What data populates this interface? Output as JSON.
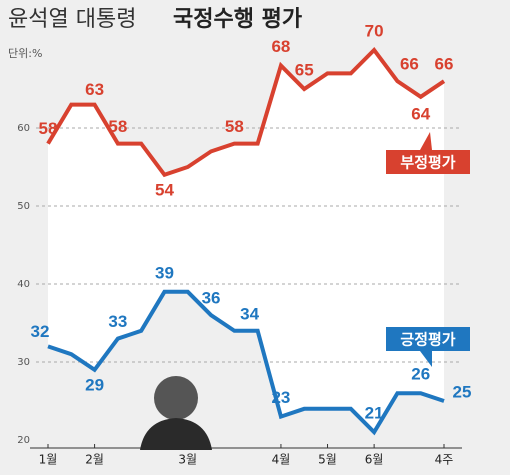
{
  "chart_data": {
    "type": "line",
    "title": "윤석열 대통령",
    "title_emphasis": "국정수행 평가",
    "unit": "단위:%",
    "categories": [
      "1월",
      null,
      "2월",
      null,
      null,
      null,
      "3월",
      null,
      null,
      null,
      "4월",
      null,
      "5월",
      null,
      "6월",
      null,
      null,
      "4주"
    ],
    "series": [
      {
        "name": "부정평가",
        "color": "#d8412f",
        "values": [
          58,
          63,
          63,
          58,
          58,
          54,
          55,
          57,
          58,
          58,
          68,
          65,
          67,
          67,
          70,
          66,
          64,
          66
        ]
      },
      {
        "name": "긍정평가",
        "color": "#1f77c0",
        "values": [
          32,
          31,
          29,
          33,
          34,
          39,
          39,
          36,
          34,
          34,
          23,
          24,
          24,
          24,
          21,
          26,
          26,
          25
        ]
      }
    ],
    "ylim": [
      20,
      72
    ],
    "yticks": [
      20,
      30,
      40,
      50,
      60
    ],
    "grid": true
  }
}
